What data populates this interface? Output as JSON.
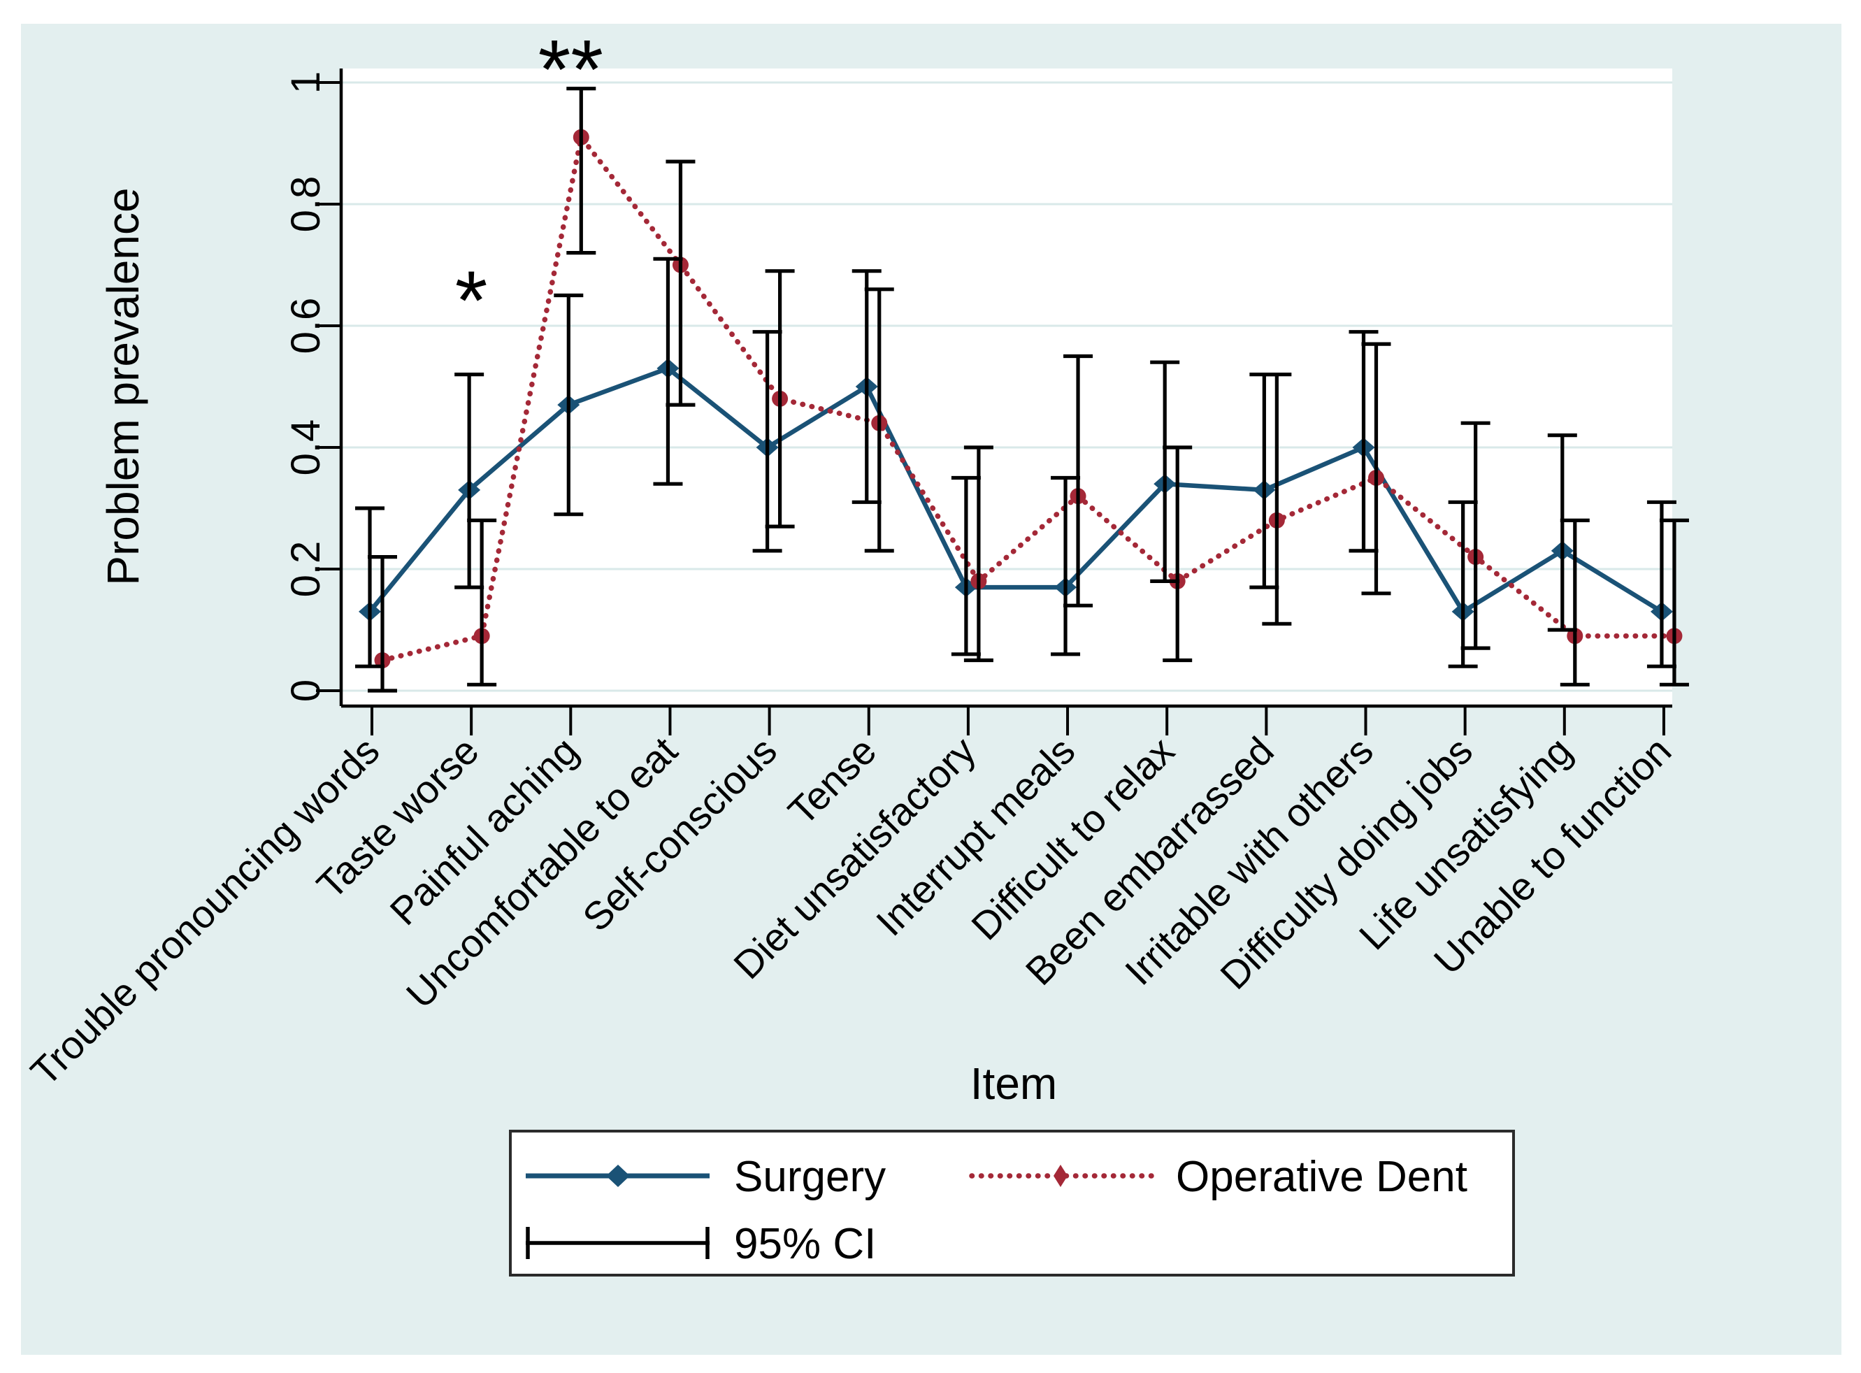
{
  "figure": {
    "background_color": "#e3efef",
    "plot_background": "#ffffff",
    "gridline_color": "#d9e9e9",
    "axis_color": "#000000",
    "y_axis": {
      "title": "Problem prevalence",
      "tick_labels": [
        "0",
        "0.2",
        "0.4",
        "0.6",
        "0.8",
        "1"
      ],
      "tick_values": [
        0,
        0.2,
        0.4,
        0.6,
        0.8,
        1
      ]
    },
    "x_axis": {
      "title": "Item"
    },
    "legend": {
      "surgery_label": "Surgery",
      "operative_label": "Operative Dent",
      "ci_label": "95% CI"
    }
  },
  "chart_data": {
    "type": "line",
    "title": "",
    "xlabel": "Item",
    "ylabel": "Problem prevalence",
    "ylim": [
      0,
      1
    ],
    "grid": "horizontal",
    "legend_position": "bottom",
    "error_bars": {
      "label": "95% CI",
      "color": "#000000"
    },
    "categories": [
      "Trouble pronouncing words",
      "Taste worse",
      "Painful aching",
      "Uncomfortable to eat",
      "Self-conscious",
      "Tense",
      "Diet unsatisfactory",
      "Interrupt meals",
      "Difficult to relax",
      "Been embarrassed",
      "Irritable with others",
      "Difficulty doing jobs",
      "Life unsatisfying",
      "Unable to function"
    ],
    "series": [
      {
        "name": "Surgery",
        "color": "#1a5276",
        "line_style": "solid",
        "marker": "diamond",
        "values": [
          0.13,
          0.33,
          0.47,
          0.53,
          0.4,
          0.5,
          0.17,
          0.17,
          0.34,
          0.33,
          0.4,
          0.13,
          0.23,
          0.13
        ],
        "ci_low": [
          0.04,
          0.17,
          0.29,
          0.34,
          0.23,
          0.31,
          0.06,
          0.06,
          0.18,
          0.17,
          0.23,
          0.04,
          0.1,
          0.04
        ],
        "ci_high": [
          0.3,
          0.52,
          0.65,
          0.71,
          0.59,
          0.69,
          0.35,
          0.35,
          0.54,
          0.52,
          0.59,
          0.31,
          0.42,
          0.31
        ]
      },
      {
        "name": "Operative Dent",
        "color": "#a42837",
        "line_style": "dotted",
        "marker": "circle",
        "values": [
          0.05,
          0.09,
          0.91,
          0.7,
          0.48,
          0.44,
          0.18,
          0.32,
          0.18,
          0.28,
          0.35,
          0.22,
          0.09,
          0.09
        ],
        "ci_low": [
          0.0,
          0.01,
          0.72,
          0.47,
          0.27,
          0.23,
          0.05,
          0.14,
          0.05,
          0.11,
          0.16,
          0.07,
          0.01,
          0.01
        ],
        "ci_high": [
          0.22,
          0.28,
          0.99,
          0.87,
          0.69,
          0.66,
          0.4,
          0.55,
          0.4,
          0.52,
          0.57,
          0.44,
          0.28,
          0.28
        ]
      }
    ],
    "annotations": [
      {
        "x_index": 1,
        "y": 0.64,
        "text": "*"
      },
      {
        "x_index": 2,
        "y": 1.02,
        "text": "**"
      }
    ]
  }
}
